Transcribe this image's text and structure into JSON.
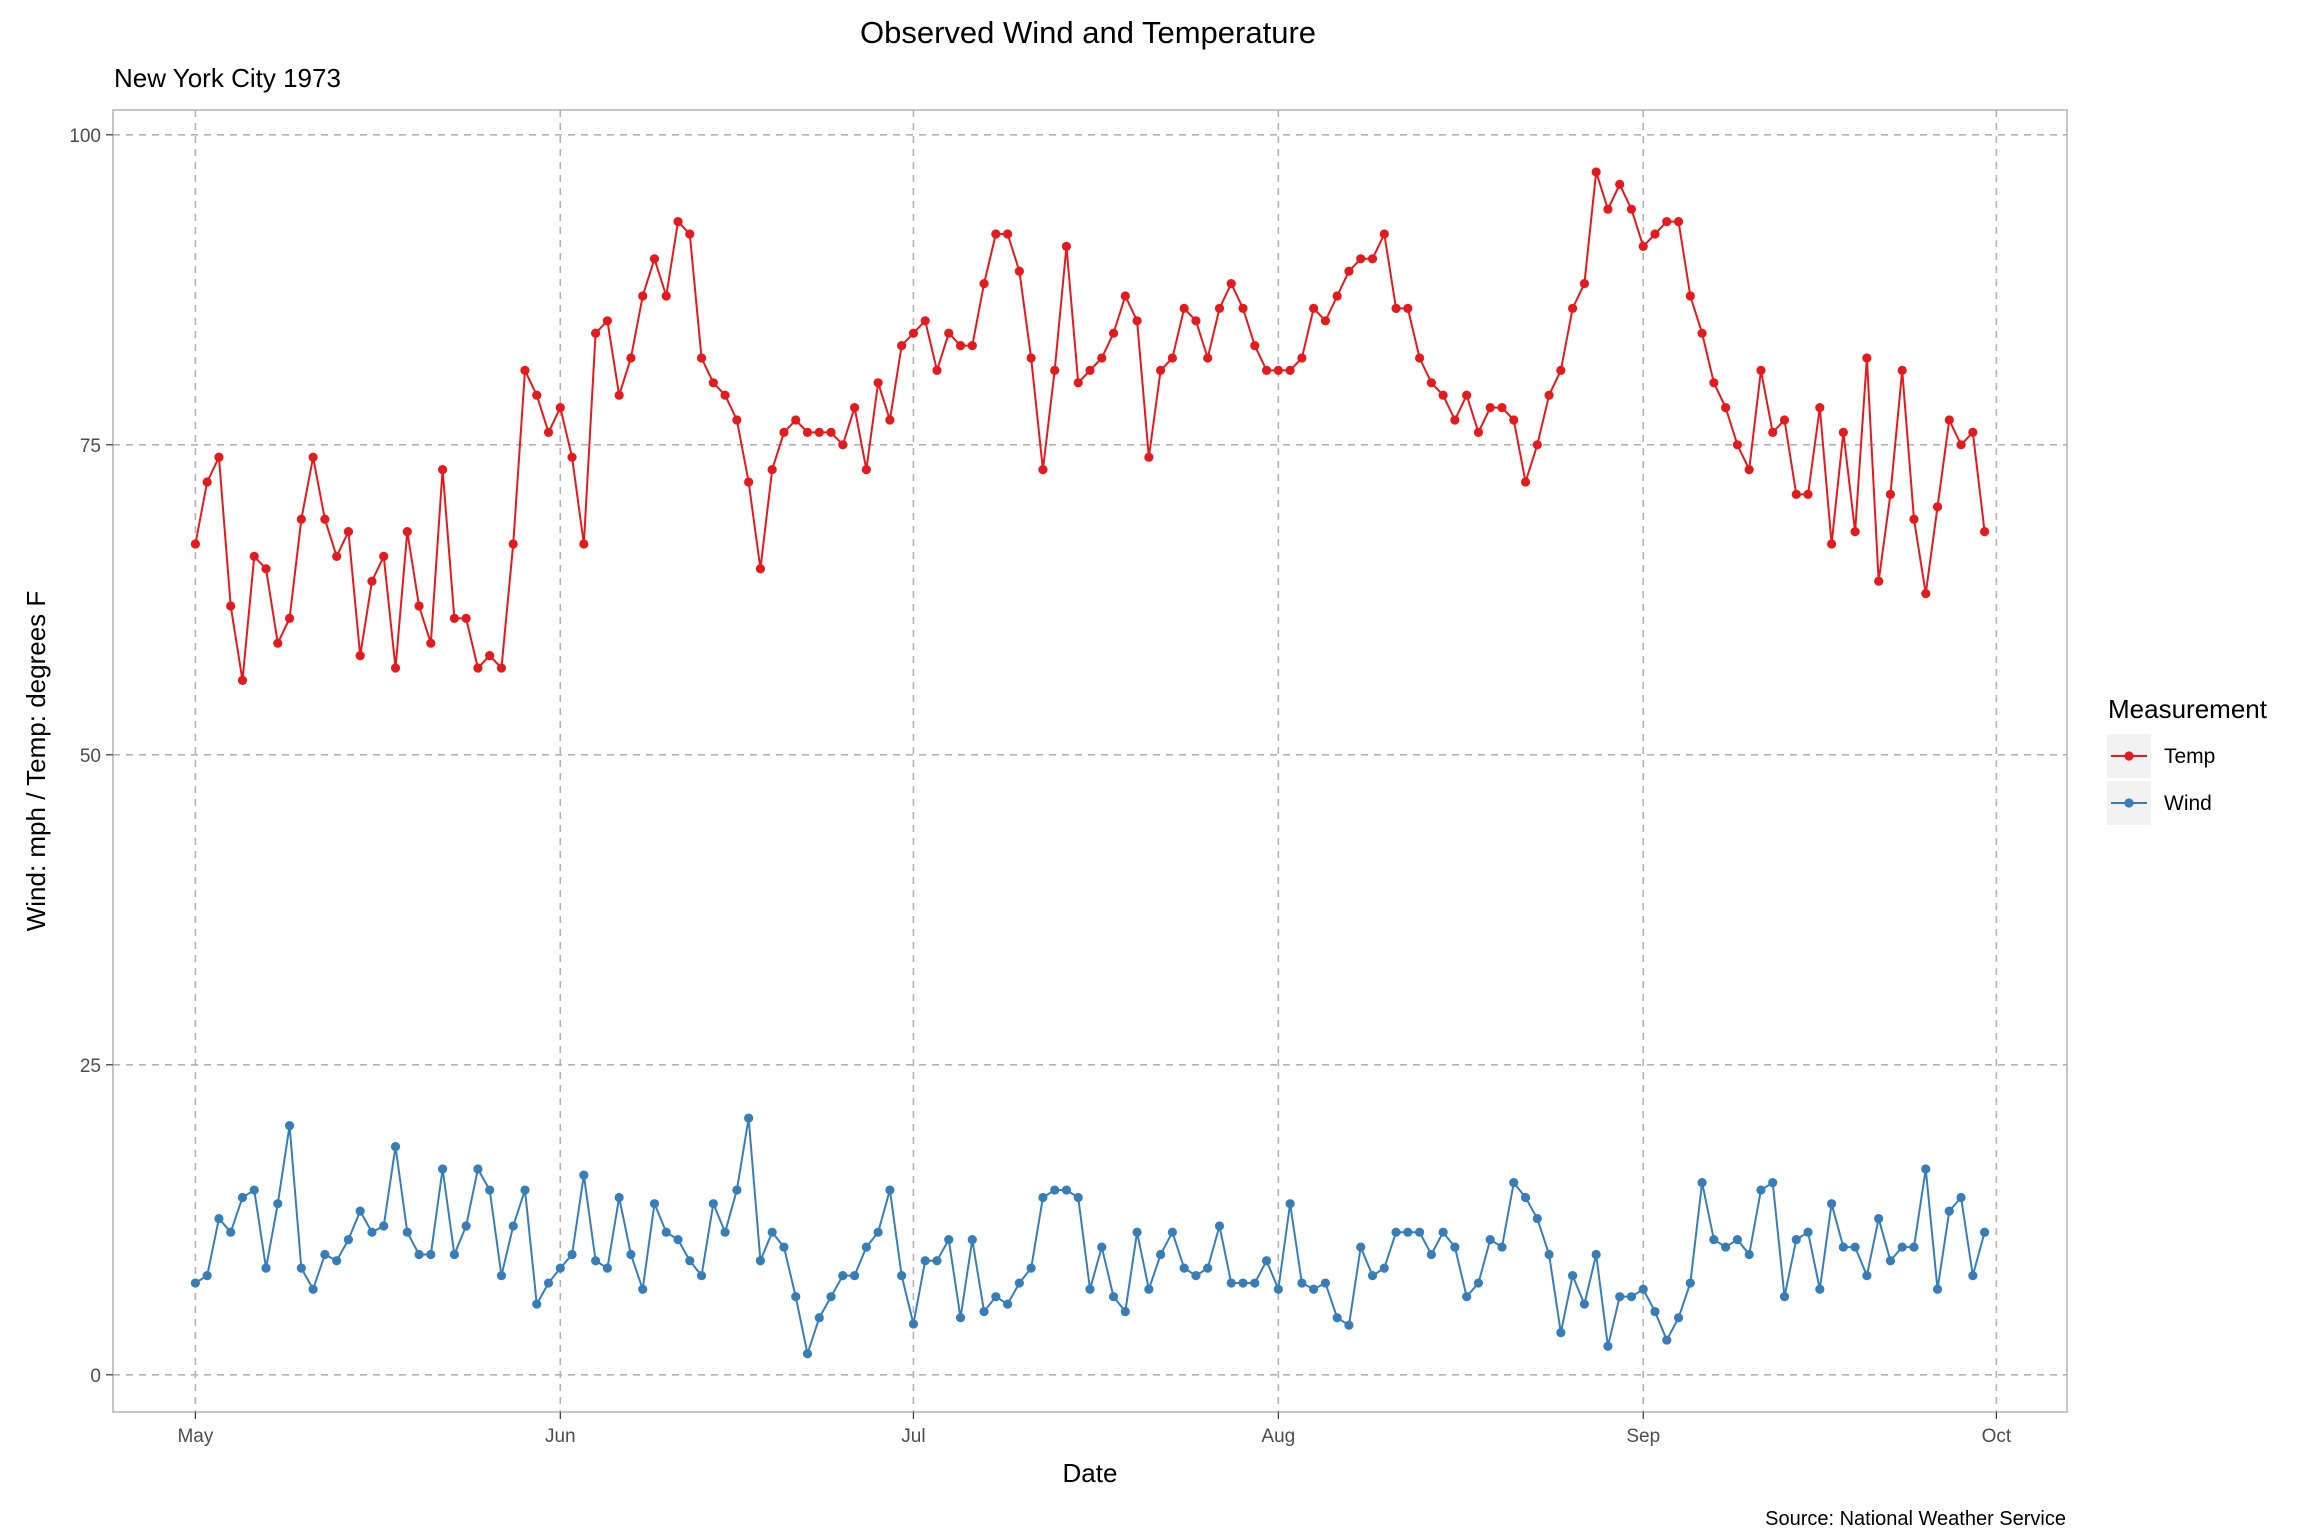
{
  "chart_data": {
    "type": "line",
    "title": "Observed Wind and Temperature",
    "subtitle": "New York City 1973",
    "xlabel": "Date",
    "ylabel": "Wind: mph / Temp: degrees F",
    "caption": "Source: National Weather Service",
    "x_start": "1973-05-01",
    "x_end": "1973-09-30",
    "xlim": [
      "1973-04-24",
      "1973-10-07"
    ],
    "ylim": [
      -3,
      102
    ],
    "x_ticks": [
      {
        "date": "1973-05-01",
        "label": "May"
      },
      {
        "date": "1973-06-01",
        "label": "Jun"
      },
      {
        "date": "1973-07-01",
        "label": "Jul"
      },
      {
        "date": "1973-08-01",
        "label": "Aug"
      },
      {
        "date": "1973-09-01",
        "label": "Sep"
      },
      {
        "date": "1973-10-01",
        "label": "Oct"
      }
    ],
    "y_ticks": [
      0,
      25,
      50,
      75,
      100
    ],
    "grid": "major, dashed",
    "legend": {
      "title": "Measurement",
      "position": "right"
    },
    "series": [
      {
        "name": "Temp",
        "color": "#e41a1c",
        "values": [
          67,
          72,
          74,
          62,
          56,
          66,
          65,
          59,
          61,
          69,
          74,
          69,
          66,
          68,
          58,
          64,
          66,
          57,
          68,
          62,
          59,
          73,
          61,
          61,
          57,
          58,
          57,
          67,
          81,
          79,
          76,
          78,
          74,
          67,
          84,
          85,
          79,
          82,
          87,
          90,
          87,
          93,
          92,
          82,
          80,
          79,
          77,
          72,
          65,
          73,
          76,
          77,
          76,
          76,
          76,
          75,
          78,
          73,
          80,
          77,
          83,
          84,
          85,
          81,
          84,
          83,
          83,
          88,
          92,
          92,
          89,
          82,
          73,
          81,
          91,
          80,
          81,
          82,
          84,
          87,
          85,
          74,
          81,
          82,
          86,
          85,
          82,
          86,
          88,
          86,
          83,
          81,
          81,
          81,
          82,
          86,
          85,
          87,
          89,
          90,
          90,
          92,
          86,
          86,
          82,
          80,
          79,
          77,
          79,
          76,
          78,
          78,
          77,
          72,
          75,
          79,
          81,
          86,
          88,
          97,
          94,
          96,
          94,
          91,
          92,
          93,
          93,
          87,
          84,
          80,
          78,
          75,
          73,
          81,
          76,
          77,
          71,
          71,
          78,
          67,
          76,
          68,
          82,
          64,
          71,
          81,
          69,
          63,
          70,
          77,
          75,
          76,
          68
        ]
      },
      {
        "name": "Wind",
        "color": "#377eb8",
        "values": [
          7.4,
          8.0,
          12.6,
          11.5,
          14.3,
          14.9,
          8.6,
          13.8,
          20.1,
          8.6,
          6.9,
          9.7,
          9.2,
          10.9,
          13.2,
          11.5,
          12.0,
          18.4,
          11.5,
          9.7,
          9.7,
          16.6,
          9.7,
          12.0,
          16.6,
          14.9,
          8.0,
          12.0,
          14.9,
          5.7,
          7.4,
          8.6,
          9.7,
          16.1,
          9.2,
          8.6,
          14.3,
          9.7,
          6.9,
          13.8,
          11.5,
          10.9,
          9.2,
          8.0,
          13.8,
          11.5,
          14.9,
          20.7,
          9.2,
          11.5,
          10.3,
          6.3,
          1.7,
          4.6,
          6.3,
          8.0,
          8.0,
          10.3,
          11.5,
          14.9,
          8.0,
          4.1,
          9.2,
          9.2,
          10.9,
          4.6,
          10.9,
          5.1,
          6.3,
          5.7,
          7.4,
          8.6,
          14.3,
          14.9,
          14.9,
          14.3,
          6.9,
          10.3,
          6.3,
          5.1,
          11.5,
          6.9,
          9.7,
          11.5,
          8.6,
          8.0,
          8.6,
          12.0,
          7.4,
          7.4,
          7.4,
          9.2,
          6.9,
          13.8,
          7.4,
          6.9,
          7.4,
          4.6,
          4.0,
          10.3,
          8.0,
          8.6,
          11.5,
          11.5,
          11.5,
          9.7,
          11.5,
          10.3,
          6.3,
          7.4,
          10.9,
          10.3,
          15.5,
          14.3,
          12.6,
          9.7,
          3.4,
          8.0,
          5.7,
          9.7,
          2.3,
          6.3,
          6.3,
          6.9,
          5.1,
          2.8,
          4.6,
          7.4,
          15.5,
          10.9,
          10.3,
          10.9,
          9.7,
          14.9,
          15.5,
          6.3,
          10.9,
          11.5,
          6.9,
          13.8,
          10.3,
          10.3,
          8.0,
          12.6,
          9.2,
          10.3,
          10.3,
          16.6,
          6.9,
          13.2,
          14.3,
          8.0,
          11.5
        ]
      }
    ]
  }
}
